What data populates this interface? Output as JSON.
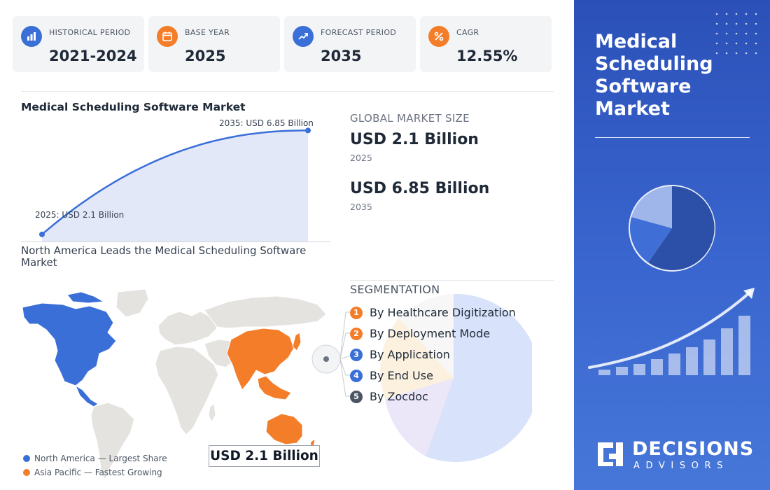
{
  "stats": [
    {
      "label": "HISTORICAL PERIOD",
      "value": "2021-2024",
      "icon": "bar-chart-icon",
      "color": "#3b6fd8"
    },
    {
      "label": "BASE YEAR",
      "value": "2025",
      "icon": "calendar-icon",
      "color": "#f47d2a"
    },
    {
      "label": "FORECAST PERIOD",
      "value": "2035",
      "icon": "trend-up-icon",
      "color": "#3b6fd8"
    },
    {
      "label": "CAGR",
      "value": "12.55%",
      "icon": "percent-icon",
      "color": "#f47d2a"
    }
  ],
  "growth_chart": {
    "title": "Medical Scheduling Software Market",
    "start_label": "2025: USD 2.1 Billion",
    "end_label": "2035: USD 6.85 Billion"
  },
  "chart_data": {
    "type": "area",
    "x": [
      2025,
      2035
    ],
    "y": [
      2.1,
      6.85
    ]
  },
  "market_size": {
    "title": "GLOBAL MARKET SIZE",
    "entries": [
      {
        "value": "USD 2.1 Billion",
        "year": "2025"
      },
      {
        "value": "USD 6.85 Billion",
        "year": "2035"
      }
    ]
  },
  "map": {
    "title": "North America Leads the Medical Scheduling Software Market",
    "legend": [
      {
        "label": "North America — Largest Share",
        "color": "#3b6fd8"
      },
      {
        "label": "Asia Pacific — Fastest Growing",
        "color": "#f47d2a"
      }
    ],
    "value_box": "USD 2.1 Billion"
  },
  "segmentation": {
    "title": "SEGMENTATION",
    "items": [
      {
        "num": "1",
        "label": "By Healthcare Digitization",
        "color": "#f47d2a"
      },
      {
        "num": "2",
        "label": "By Deployment Mode",
        "color": "#f47d2a"
      },
      {
        "num": "3",
        "label": "By Application",
        "color": "#3b6fd8"
      },
      {
        "num": "4",
        "label": "By End Use",
        "color": "#3b6fd8"
      },
      {
        "num": "5",
        "label": "By Zocdoc",
        "color": "#4b5563"
      }
    ]
  },
  "panel": {
    "title": "Medical Scheduling Software Market",
    "brand_name": "DECISIONS",
    "brand_sub": "ADVISORS"
  }
}
